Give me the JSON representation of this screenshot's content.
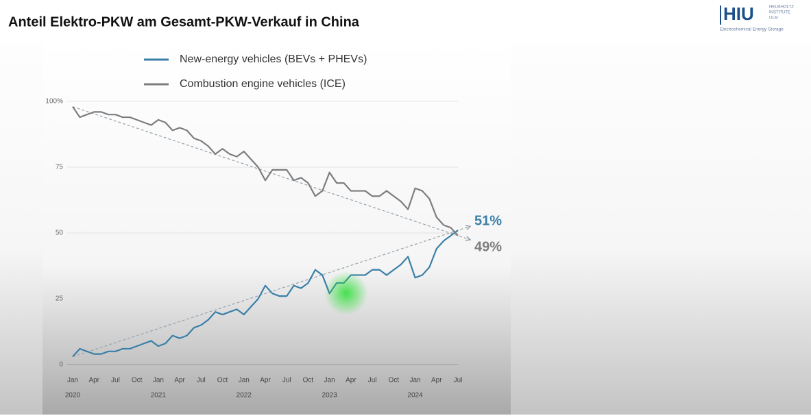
{
  "header": {
    "title": "Anteil Elektro-PKW am Gesamt-PKW-Verkauf in China",
    "logo": "HIU",
    "logo_sub": [
      "HELMHOLTZ",
      "INSTITUTE",
      "ULM"
    ],
    "logo_caption": "Electrochemical Energy Storage"
  },
  "chart_data": {
    "type": "line",
    "categories": [
      "Jan",
      null,
      null,
      "Apr",
      null,
      null,
      "Jul",
      null,
      null,
      "Oct",
      null,
      null,
      "Jan",
      null,
      null,
      "Apr",
      null,
      null,
      "Jul",
      null,
      null,
      "Oct",
      null,
      null,
      "Jan",
      null,
      null,
      "Apr",
      null,
      null,
      "Jul",
      null,
      null,
      "Oct",
      null,
      null,
      "Jan",
      null,
      null,
      "Apr",
      null,
      null,
      "Jul",
      null,
      null,
      "Oct",
      null,
      null,
      "Jan",
      null,
      null,
      "Apr",
      null,
      null,
      "Jul"
    ],
    "year_labels": [
      "2020",
      "2021",
      "2022",
      "2023",
      "2024"
    ],
    "series": [
      {
        "name": "New-energy vehicles (BEVs + PHEVs)",
        "color": "#3a7fa8",
        "values": [
          3,
          6,
          5,
          4,
          4,
          5,
          5,
          6,
          6,
          7,
          8,
          9,
          7,
          8,
          11,
          10,
          11,
          14,
          15,
          17,
          20,
          19,
          20,
          21,
          19,
          22,
          25,
          30,
          27,
          26,
          26,
          30,
          29,
          31,
          36,
          34,
          27,
          31,
          31,
          34,
          34,
          34,
          36,
          36,
          34,
          36,
          38,
          41,
          33,
          34,
          37,
          44,
          47,
          49,
          51
        ]
      },
      {
        "name": "Combustion engine vehicles (ICE)",
        "color": "#7d7d7d",
        "values": [
          98,
          94,
          95,
          96,
          96,
          95,
          95,
          94,
          94,
          93,
          92,
          91,
          93,
          92,
          89,
          90,
          89,
          86,
          85,
          83,
          80,
          82,
          80,
          79,
          81,
          78,
          75,
          70,
          74,
          74,
          74,
          70,
          71,
          69,
          64,
          66,
          73,
          69,
          69,
          66,
          66,
          66,
          64,
          64,
          66,
          64,
          62,
          59,
          67,
          66,
          63,
          56,
          53,
          52,
          49
        ]
      }
    ],
    "annotations": [
      "51%",
      "49%"
    ],
    "ylim": [
      0,
      100
    ],
    "yticks": [
      0,
      25,
      50,
      75,
      {
        "value": 100,
        "label": "100%"
      }
    ],
    "grid": true
  }
}
